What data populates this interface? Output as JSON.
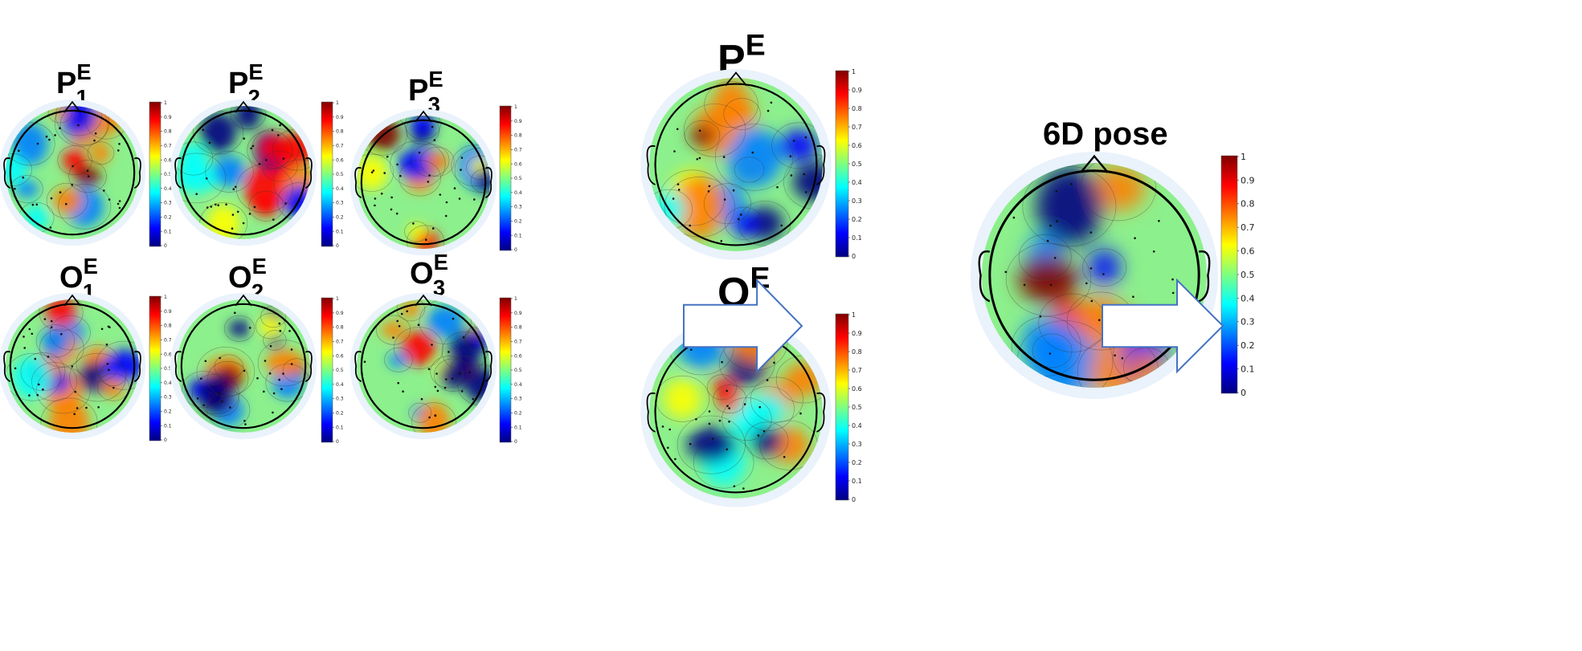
{
  "colormap": [
    "#00007f",
    "#0000ff",
    "#007fff",
    "#00ffff",
    "#7fff7f",
    "#ffff00",
    "#ff7f00",
    "#ff0000",
    "#7f0000"
  ],
  "colorbar_ticks": [
    "1",
    "0.9",
    "0.8",
    "0.7",
    "0.6",
    "0.5",
    "0.4",
    "0.3",
    "0.2",
    "0.1",
    "0"
  ],
  "topomaps": [
    {
      "id": "p1",
      "base": "P",
      "sub": "1",
      "sup": "E",
      "seed": 11
    },
    {
      "id": "p2",
      "base": "P",
      "sub": "2",
      "sup": "E",
      "seed": 23
    },
    {
      "id": "p3",
      "base": "P",
      "sub": "3",
      "sup": "E",
      "seed": 37
    },
    {
      "id": "o1",
      "base": "O",
      "sub": "1",
      "sup": "E",
      "seed": 41
    },
    {
      "id": "o2",
      "base": "O",
      "sub": "2",
      "sup": "E",
      "seed": 53
    },
    {
      "id": "o3",
      "base": "O",
      "sub": "3",
      "sup": "E",
      "seed": 67
    },
    {
      "id": "pe",
      "base": "P",
      "sub": "",
      "sup": "E",
      "seed": 71
    },
    {
      "id": "oe",
      "base": "O",
      "sub": "",
      "sup": "E",
      "seed": 83
    },
    {
      "id": "pose",
      "base": "6D pose",
      "sub": "",
      "sup": "",
      "seed": 97
    }
  ],
  "arrows": [
    "fusion-arrow",
    "output-arrow"
  ]
}
